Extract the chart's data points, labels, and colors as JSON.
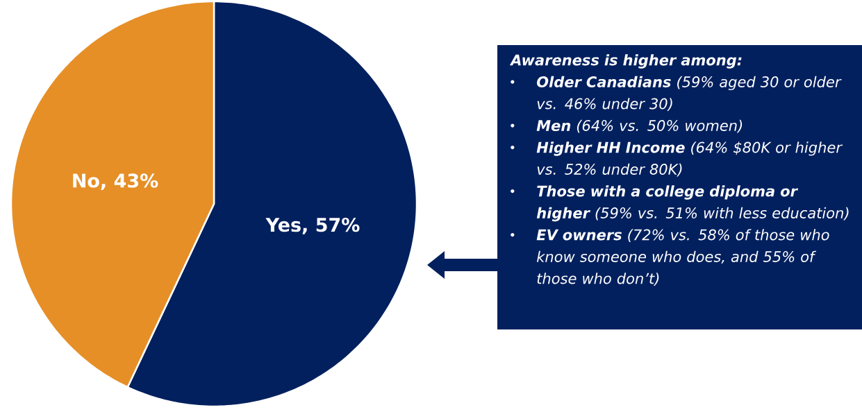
{
  "chart_data": {
    "type": "pie",
    "categories": [
      "Yes, 57%",
      "No, 43%"
    ],
    "values": [
      57,
      43
    ],
    "colors": [
      "#03205e",
      "#e68f27"
    ],
    "annotations": [
      "Awareness is higher among:",
      "**Older Canadians** (59% aged 30 or older vs. 46% under 30)",
      "**Men** (64% vs. 50% women)",
      "**Higher HH Income** (64% $80K or higher vs. 52% under 80K)",
      "**Those with a college diploma or higher** (59% vs. 51% with less education)",
      "**EV owners** (72% vs.  58% of those who know someone who does, and 55% of those who don’t)"
    ]
  }
}
